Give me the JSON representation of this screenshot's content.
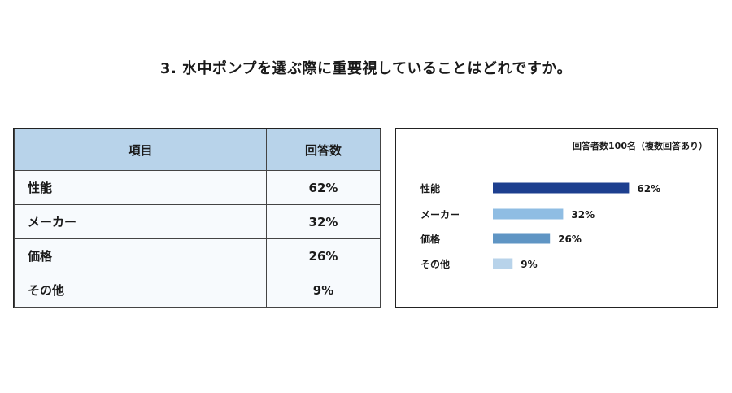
{
  "title": "3. 水中ポンプを選ぶ際に重要視していることはどれですか。",
  "table": {
    "headers": [
      "項目",
      "回答数"
    ],
    "rows": [
      {
        "label": "性能",
        "value": "62%"
      },
      {
        "label": "メーカー",
        "value": "32%"
      },
      {
        "label": "価格",
        "value": "26%"
      },
      {
        "label": "その他",
        "value": "9%"
      }
    ]
  },
  "chart_data": {
    "type": "bar",
    "orientation": "horizontal",
    "note": "回答者数100名（複数回答あり）",
    "categories": [
      "性能",
      "メーカー",
      "価格",
      "その他"
    ],
    "values": [
      62,
      32,
      26,
      9
    ],
    "value_labels": [
      "62%",
      "32%",
      "26%",
      "9%"
    ],
    "colors": [
      "#1d3f8f",
      "#8fbde3",
      "#5f95c4",
      "#b8d3ea"
    ],
    "xlim": [
      0,
      100
    ],
    "grid": false,
    "legend": "none"
  }
}
